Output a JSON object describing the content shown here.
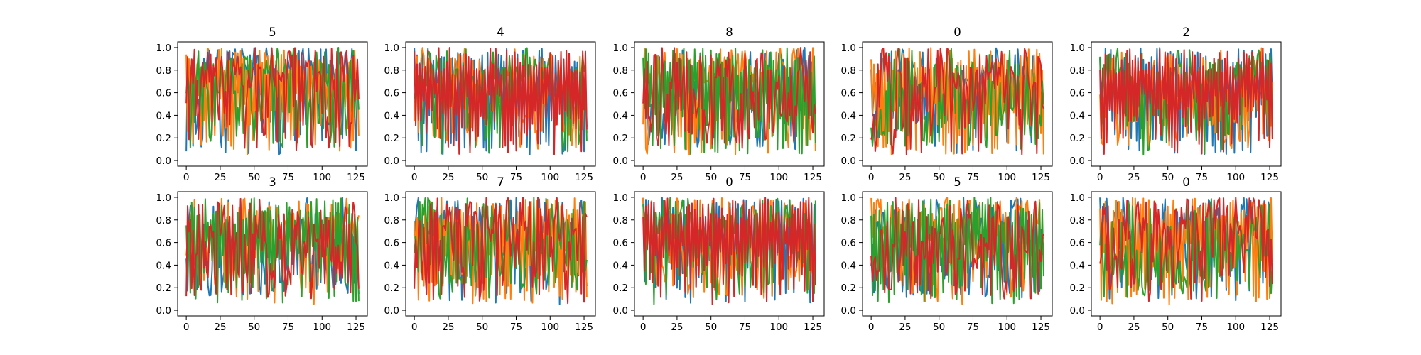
{
  "figure": {
    "background": "#ffffff"
  },
  "series_colors": [
    "#1f77b4",
    "#ff7f0e",
    "#2ca02c",
    "#d62728"
  ],
  "chart_data": [
    {
      "type": "line",
      "title": "5",
      "x_range": [
        0,
        127
      ],
      "ylim": [
        0.0,
        1.0
      ],
      "xticks": [
        "0",
        "25",
        "50",
        "75",
        "100",
        "125"
      ],
      "yticks": [
        "0.0",
        "0.2",
        "0.4",
        "0.6",
        "0.8",
        "1.0"
      ],
      "grid": false,
      "legend": "none",
      "n_points": 128,
      "series_count": 4
    },
    {
      "type": "line",
      "title": "4",
      "x_range": [
        0,
        127
      ],
      "ylim": [
        0.0,
        1.0
      ],
      "xticks": [
        "0",
        "25",
        "50",
        "75",
        "100",
        "125"
      ],
      "yticks": [
        "0.0",
        "0.2",
        "0.4",
        "0.6",
        "0.8",
        "1.0"
      ],
      "grid": false,
      "legend": "none",
      "n_points": 128,
      "series_count": 4
    },
    {
      "type": "line",
      "title": "8",
      "x_range": [
        0,
        127
      ],
      "ylim": [
        0.0,
        1.0
      ],
      "xticks": [
        "0",
        "25",
        "50",
        "75",
        "100",
        "125"
      ],
      "yticks": [
        "0.0",
        "0.2",
        "0.4",
        "0.6",
        "0.8",
        "1.0"
      ],
      "grid": false,
      "legend": "none",
      "n_points": 128,
      "series_count": 4
    },
    {
      "type": "line",
      "title": "0",
      "x_range": [
        0,
        127
      ],
      "ylim": [
        0.0,
        1.0
      ],
      "xticks": [
        "0",
        "25",
        "50",
        "75",
        "100",
        "125"
      ],
      "yticks": [
        "0.0",
        "0.2",
        "0.4",
        "0.6",
        "0.8",
        "1.0"
      ],
      "grid": false,
      "legend": "none",
      "n_points": 128,
      "series_count": 4
    },
    {
      "type": "line",
      "title": "2",
      "x_range": [
        0,
        127
      ],
      "ylim": [
        0.0,
        1.0
      ],
      "xticks": [
        "0",
        "25",
        "50",
        "75",
        "100",
        "125"
      ],
      "yticks": [
        "0.0",
        "0.2",
        "0.4",
        "0.6",
        "0.8",
        "1.0"
      ],
      "grid": false,
      "legend": "none",
      "n_points": 128,
      "series_count": 4
    },
    {
      "type": "line",
      "title": "3",
      "x_range": [
        0,
        127
      ],
      "ylim": [
        0.0,
        1.0
      ],
      "xticks": [
        "0",
        "25",
        "50",
        "75",
        "100",
        "125"
      ],
      "yticks": [
        "0.0",
        "0.2",
        "0.4",
        "0.6",
        "0.8",
        "1.0"
      ],
      "grid": false,
      "legend": "none",
      "n_points": 128,
      "series_count": 4
    },
    {
      "type": "line",
      "title": "7",
      "x_range": [
        0,
        127
      ],
      "ylim": [
        0.0,
        1.0
      ],
      "xticks": [
        "0",
        "25",
        "50",
        "75",
        "100",
        "125"
      ],
      "yticks": [
        "0.0",
        "0.2",
        "0.4",
        "0.6",
        "0.8",
        "1.0"
      ],
      "grid": false,
      "legend": "none",
      "n_points": 128,
      "series_count": 4
    },
    {
      "type": "line",
      "title": "0",
      "x_range": [
        0,
        127
      ],
      "ylim": [
        0.0,
        1.0
      ],
      "xticks": [
        "0",
        "25",
        "50",
        "75",
        "100",
        "125"
      ],
      "yticks": [
        "0.0",
        "0.2",
        "0.4",
        "0.6",
        "0.8",
        "1.0"
      ],
      "grid": false,
      "legend": "none",
      "n_points": 128,
      "series_count": 4
    },
    {
      "type": "line",
      "title": "5",
      "x_range": [
        0,
        127
      ],
      "ylim": [
        0.0,
        1.0
      ],
      "xticks": [
        "0",
        "25",
        "50",
        "75",
        "100",
        "125"
      ],
      "yticks": [
        "0.0",
        "0.2",
        "0.4",
        "0.6",
        "0.8",
        "1.0"
      ],
      "grid": false,
      "legend": "none",
      "n_points": 128,
      "series_count": 4
    },
    {
      "type": "line",
      "title": "0",
      "x_range": [
        0,
        127
      ],
      "ylim": [
        0.0,
        1.0
      ],
      "xticks": [
        "0",
        "25",
        "50",
        "75",
        "100",
        "125"
      ],
      "yticks": [
        "0.0",
        "0.2",
        "0.4",
        "0.6",
        "0.8",
        "1.0"
      ],
      "grid": false,
      "legend": "none",
      "n_points": 128,
      "series_count": 4
    }
  ]
}
